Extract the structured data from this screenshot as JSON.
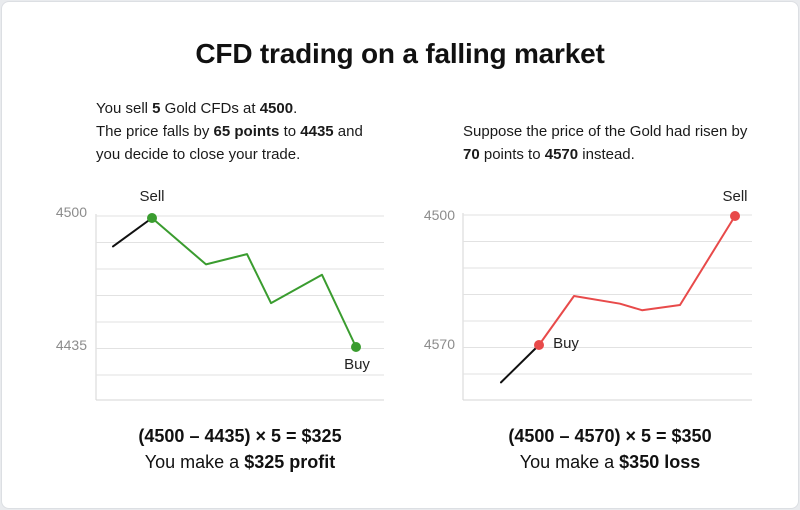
{
  "title": "CFD trading on a falling market",
  "left": {
    "desc": {
      "l1_pre": "You sell ",
      "l1_qty": "5",
      "l1_mid": " Gold CFDs at ",
      "l1_price": "4500",
      "l1_end": ".",
      "l2_pre": "The price falls by ",
      "l2_points": "65 points",
      "l2_mid": " to ",
      "l2_price": "4435",
      "l2_end": " and",
      "l3": "you decide to close your trade."
    },
    "formula": "(4500 – 4435) × 5  =  $325",
    "result_pre": "You make a ",
    "result_bold": "$325 profit"
  },
  "right": {
    "desc": {
      "l1": "Suppose the price of the Gold had risen by",
      "l2_points": "70",
      "l2_mid": " points to ",
      "l2_price": "4570",
      "l2_end": " instead."
    },
    "formula": "(4500 – 4570) × 5  =  $350",
    "result_pre": "You make a ",
    "result_bold": "$350 loss"
  },
  "chart_data": [
    {
      "type": "line",
      "y_ticks": [
        "4500",
        "4435"
      ],
      "series": [
        {
          "color": "#111111",
          "values": [
            0.22,
            0.0
          ]
        },
        {
          "color": "#3a9c2f",
          "values": [
            0.0,
            0.36,
            0.28,
            0.66,
            0.44,
            1.0
          ]
        }
      ],
      "markers": [
        {
          "label": "Sell",
          "color": "#3a9c2f"
        },
        {
          "label": "Buy",
          "color": "#3a9c2f"
        }
      ]
    },
    {
      "type": "line",
      "y_ticks": [
        "4500",
        "4570"
      ],
      "series": [
        {
          "color": "#111111",
          "values": [
            1.29,
            1.0
          ]
        },
        {
          "color": "#e84a4a",
          "values": [
            1.0,
            0.62,
            0.68,
            0.73,
            0.69,
            0.0
          ]
        }
      ],
      "markers": [
        {
          "label": "Buy",
          "color": "#e84a4a"
        },
        {
          "label": "Sell",
          "color": "#e84a4a"
        }
      ]
    }
  ]
}
